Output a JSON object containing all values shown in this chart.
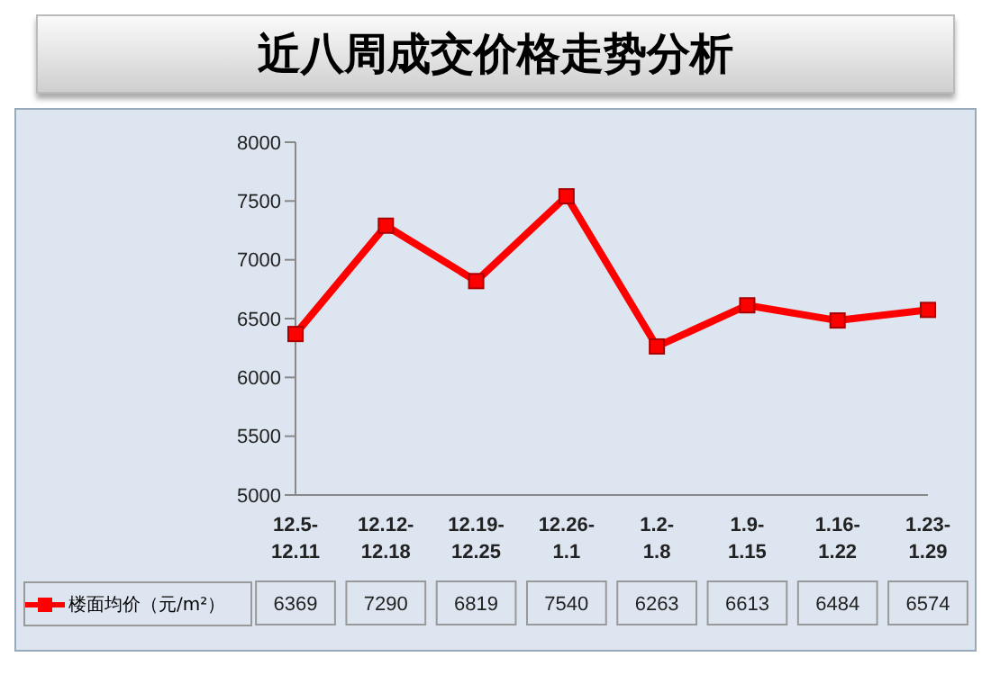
{
  "chart_data": {
    "type": "line",
    "title": "近八周成交价格走势分析",
    "categories": [
      "12.5-12.11",
      "12.12-12.18",
      "12.19-12.25",
      "12.26-1.1",
      "1.2-1.8",
      "1.9-1.15",
      "1.16-1.22",
      "1.23-1.29"
    ],
    "series": [
      {
        "name": "楼面均价（元/m²）",
        "color": "#ff0000",
        "values": [
          6369,
          7290,
          6819,
          7540,
          6263,
          6613,
          6484,
          6574
        ]
      }
    ],
    "ylim": [
      5000,
      8000
    ],
    "yticks": [
      5000,
      5500,
      6000,
      6500,
      7000,
      7500,
      8000
    ],
    "marker": "square",
    "legend": "bottom",
    "data_labels": true
  }
}
